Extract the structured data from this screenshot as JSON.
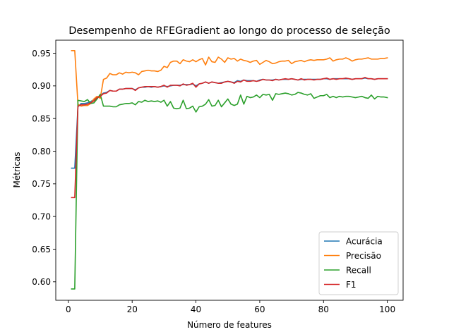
{
  "chart_data": {
    "type": "line",
    "title": "Desempenho de RFEGradient ao longo do processo de seleção",
    "xlabel": "Número de features",
    "ylabel": "Métricas",
    "xlim": [
      -3.95,
      104.95
    ],
    "ylim": [
      0.5717,
      0.97
    ],
    "xticks": [
      0,
      20,
      40,
      60,
      80,
      100
    ],
    "yticks": [
      0.6,
      0.65,
      0.7,
      0.75,
      0.8,
      0.85,
      0.9,
      0.95
    ],
    "ytick_labels": [
      "0.60",
      "0.65",
      "0.70",
      "0.75",
      "0.80",
      "0.85",
      "0.90",
      "0.95"
    ],
    "grid": false,
    "legend_position": "lower-right",
    "x": [
      1,
      2,
      3,
      4,
      5,
      6,
      7,
      8,
      9,
      10,
      11,
      12,
      13,
      14,
      15,
      16,
      17,
      18,
      19,
      20,
      21,
      22,
      23,
      24,
      25,
      26,
      27,
      28,
      29,
      30,
      31,
      32,
      33,
      34,
      35,
      36,
      37,
      38,
      39,
      40,
      41,
      42,
      43,
      44,
      45,
      46,
      47,
      48,
      49,
      50,
      51,
      52,
      53,
      54,
      55,
      56,
      57,
      58,
      59,
      60,
      61,
      62,
      63,
      64,
      65,
      66,
      67,
      68,
      69,
      70,
      71,
      72,
      73,
      74,
      75,
      76,
      77,
      78,
      79,
      80,
      81,
      82,
      83,
      84,
      85,
      86,
      87,
      88,
      89,
      90,
      91,
      92,
      93,
      94,
      95,
      96,
      97,
      98,
      99,
      100
    ],
    "series": [
      {
        "name": "Acurácia",
        "color": "#1f77b4",
        "values": [
          0.774,
          0.774,
          0.868,
          0.873,
          0.873,
          0.874,
          0.876,
          0.879,
          0.882,
          0.885,
          0.889,
          0.89,
          0.893,
          0.892,
          0.892,
          0.895,
          0.895,
          0.896,
          0.896,
          0.896,
          0.894,
          0.897,
          0.898,
          0.898,
          0.899,
          0.898,
          0.899,
          0.898,
          0.899,
          0.9,
          0.899,
          0.9,
          0.901,
          0.901,
          0.901,
          0.902,
          0.902,
          0.902,
          0.903,
          0.9,
          0.903,
          0.904,
          0.906,
          0.904,
          0.906,
          0.905,
          0.904,
          0.905,
          0.906,
          0.907,
          0.906,
          0.905,
          0.908,
          0.907,
          0.909,
          0.908,
          0.908,
          0.908,
          0.907,
          0.909,
          0.91,
          0.909,
          0.909,
          0.909,
          0.91,
          0.909,
          0.91,
          0.91,
          0.91,
          0.911,
          0.91,
          0.909,
          0.91,
          0.91,
          0.91,
          0.91,
          0.91,
          0.91,
          0.91,
          0.911,
          0.911,
          0.91,
          0.911,
          0.911,
          0.911,
          0.911,
          0.911,
          0.911,
          0.91,
          0.911,
          0.911,
          0.911,
          0.912,
          0.911,
          0.911,
          0.91,
          0.911,
          0.911,
          0.911,
          0.911
        ]
      },
      {
        "name": "Precisão",
        "color": "#ff7f0e",
        "values": [
          0.954,
          0.954,
          0.872,
          0.869,
          0.87,
          0.87,
          0.873,
          0.88,
          0.884,
          0.881,
          0.91,
          0.912,
          0.919,
          0.917,
          0.917,
          0.92,
          0.918,
          0.921,
          0.92,
          0.921,
          0.92,
          0.917,
          0.922,
          0.923,
          0.924,
          0.923,
          0.923,
          0.922,
          0.924,
          0.93,
          0.928,
          0.936,
          0.938,
          0.938,
          0.934,
          0.94,
          0.938,
          0.937,
          0.94,
          0.937,
          0.94,
          0.942,
          0.932,
          0.944,
          0.937,
          0.936,
          0.944,
          0.941,
          0.936,
          0.943,
          0.941,
          0.942,
          0.938,
          0.941,
          0.939,
          0.938,
          0.936,
          0.938,
          0.939,
          0.933,
          0.936,
          0.939,
          0.937,
          0.934,
          0.935,
          0.937,
          0.938,
          0.938,
          0.939,
          0.934,
          0.937,
          0.938,
          0.939,
          0.937,
          0.939,
          0.94,
          0.939,
          0.94,
          0.94,
          0.94,
          0.941,
          0.943,
          0.938,
          0.94,
          0.941,
          0.941,
          0.943,
          0.941,
          0.938,
          0.94,
          0.941,
          0.941,
          0.942,
          0.943,
          0.941,
          0.941,
          0.941,
          0.942,
          0.942,
          0.943
        ]
      },
      {
        "name": "Recall",
        "color": "#2ca02c",
        "values": [
          0.589,
          0.589,
          0.878,
          0.877,
          0.876,
          0.879,
          0.873,
          0.874,
          0.88,
          0.887,
          0.869,
          0.869,
          0.869,
          0.868,
          0.868,
          0.871,
          0.872,
          0.873,
          0.873,
          0.874,
          0.871,
          0.876,
          0.875,
          0.878,
          0.876,
          0.877,
          0.876,
          0.877,
          0.875,
          0.878,
          0.869,
          0.876,
          0.866,
          0.865,
          0.866,
          0.878,
          0.865,
          0.866,
          0.869,
          0.86,
          0.868,
          0.869,
          0.872,
          0.879,
          0.869,
          0.87,
          0.878,
          0.868,
          0.874,
          0.88,
          0.872,
          0.87,
          0.872,
          0.886,
          0.872,
          0.884,
          0.882,
          0.883,
          0.886,
          0.882,
          0.887,
          0.886,
          0.887,
          0.878,
          0.888,
          0.887,
          0.888,
          0.889,
          0.888,
          0.886,
          0.887,
          0.89,
          0.889,
          0.887,
          0.886,
          0.888,
          0.881,
          0.883,
          0.885,
          0.885,
          0.887,
          0.882,
          0.884,
          0.882,
          0.884,
          0.883,
          0.884,
          0.884,
          0.883,
          0.882,
          0.883,
          0.884,
          0.882,
          0.881,
          0.886,
          0.88,
          0.884,
          0.883,
          0.883,
          0.882
        ]
      },
      {
        "name": "F1",
        "color": "#d62728",
        "values": [
          0.729,
          0.729,
          0.869,
          0.871,
          0.871,
          0.872,
          0.874,
          0.877,
          0.882,
          0.884,
          0.888,
          0.889,
          0.893,
          0.892,
          0.892,
          0.895,
          0.895,
          0.896,
          0.896,
          0.896,
          0.893,
          0.897,
          0.898,
          0.899,
          0.899,
          0.899,
          0.899,
          0.898,
          0.899,
          0.901,
          0.898,
          0.901,
          0.901,
          0.901,
          0.9,
          0.903,
          0.901,
          0.902,
          0.904,
          0.898,
          0.903,
          0.904,
          0.906,
          0.904,
          0.906,
          0.905,
          0.904,
          0.904,
          0.906,
          0.907,
          0.906,
          0.904,
          0.907,
          0.906,
          0.909,
          0.907,
          0.907,
          0.908,
          0.907,
          0.908,
          0.91,
          0.909,
          0.909,
          0.908,
          0.91,
          0.909,
          0.91,
          0.911,
          0.91,
          0.911,
          0.91,
          0.909,
          0.911,
          0.909,
          0.91,
          0.91,
          0.909,
          0.91,
          0.91,
          0.911,
          0.912,
          0.91,
          0.911,
          0.91,
          0.911,
          0.911,
          0.912,
          0.911,
          0.91,
          0.911,
          0.911,
          0.911,
          0.913,
          0.911,
          0.911,
          0.91,
          0.911,
          0.911,
          0.911,
          0.911
        ]
      }
    ]
  }
}
